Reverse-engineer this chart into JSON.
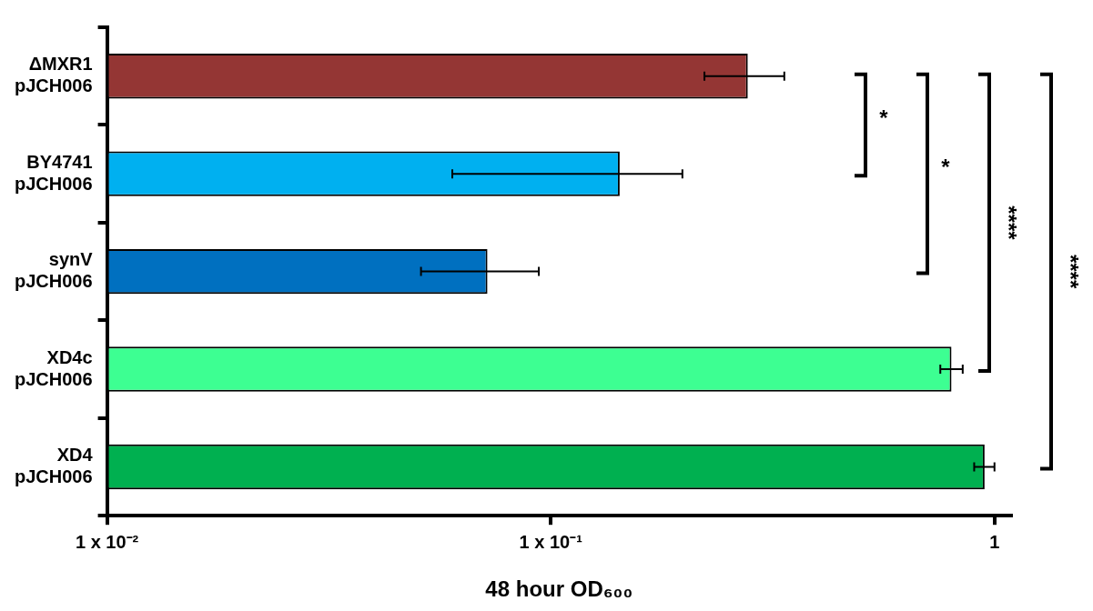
{
  "chart_data": {
    "type": "bar",
    "orientation": "horizontal",
    "log": "x",
    "xlabel": "48 hour OD₆₀₀",
    "categories": [
      "ΔMXR1 pJCH006",
      "BY4741 pJCH006",
      "synV pJCH006",
      "XD4c pJCH006",
      "XD4 pJCH006"
    ],
    "values": [
      0.278,
      0.143,
      0.072,
      0.8,
      0.95
    ],
    "colors": [
      "#943634",
      "#00b0f0",
      "#0070c0",
      "#3dff92",
      "#00b050"
    ],
    "errors": [
      [
        0.222,
        0.336
      ],
      [
        0.06,
        0.198
      ],
      [
        0.051,
        0.094
      ],
      [
        0.755,
        0.848
      ],
      [
        0.9,
        1.0
      ]
    ],
    "xlim": [
      0.01,
      1.09
    ],
    "xticks": [
      {
        "value": 0.01,
        "label": "1 x 10⁻²"
      },
      {
        "value": 0.1,
        "label": "1 x 10⁻¹"
      },
      1
    ],
    "grid": false,
    "legend": false,
    "annotations": [
      "*",
      "*",
      "****",
      "****"
    ]
  }
}
